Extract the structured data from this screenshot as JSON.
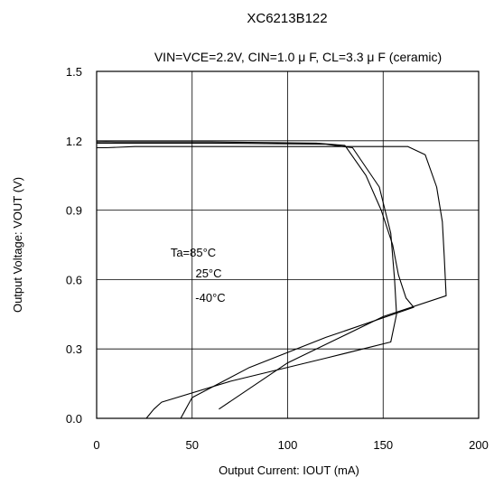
{
  "chart_data": {
    "type": "line",
    "title": "XC6213B122",
    "subtitle": "VIN=VCE=2.2V,  CIN=1.0 μ F,  CL=3.3 μ F  (ceramic)",
    "xlabel": "Output Current: IOUT (mA)",
    "ylabel": "Output Voltage: VOUT (V)",
    "xlim": [
      0,
      200
    ],
    "ylim": [
      0,
      1.5
    ],
    "xticks": [
      0,
      50,
      100,
      150,
      200
    ],
    "yticks": [
      0.0,
      0.3,
      0.6,
      0.9,
      1.2,
      1.5
    ],
    "xtick_labels": [
      "0",
      "50",
      "100",
      "150",
      "200"
    ],
    "ytick_labels": [
      "0.0",
      "0.3",
      "0.6",
      "0.9",
      "1.2",
      "1.5"
    ],
    "grid": true,
    "annotations": [
      "Ta=85°C",
      "25°C",
      "-40°C"
    ],
    "series": [
      {
        "x": [
          0,
          5,
          10,
          60,
          115,
          130,
          141,
          149,
          155,
          158,
          162,
          166,
          120,
          80,
          50,
          48,
          46,
          44
        ],
        "y": [
          1.195,
          1.196,
          1.195,
          1.195,
          1.19,
          1.18,
          1.05,
          0.9,
          0.75,
          0.62,
          0.52,
          0.48,
          0.35,
          0.22,
          0.09,
          0.06,
          0.03,
          0.0
        ]
      },
      {
        "x": [
          0,
          10,
          60,
          120,
          134,
          148,
          154,
          156,
          157,
          154,
          120,
          70,
          34,
          30,
          28,
          26
        ],
        "y": [
          1.19,
          1.19,
          1.19,
          1.185,
          1.17,
          1.0,
          0.8,
          0.6,
          0.45,
          0.33,
          0.26,
          0.16,
          0.07,
          0.04,
          0.02,
          0.0
        ]
      },
      {
        "x": [
          0,
          5,
          20,
          100,
          150,
          163,
          172,
          178,
          181,
          182,
          183,
          150,
          100,
          64
        ],
        "y": [
          1.17,
          1.17,
          1.175,
          1.175,
          1.175,
          1.175,
          1.14,
          1.0,
          0.85,
          0.7,
          0.53,
          0.44,
          0.24,
          0.04
        ]
      }
    ]
  }
}
